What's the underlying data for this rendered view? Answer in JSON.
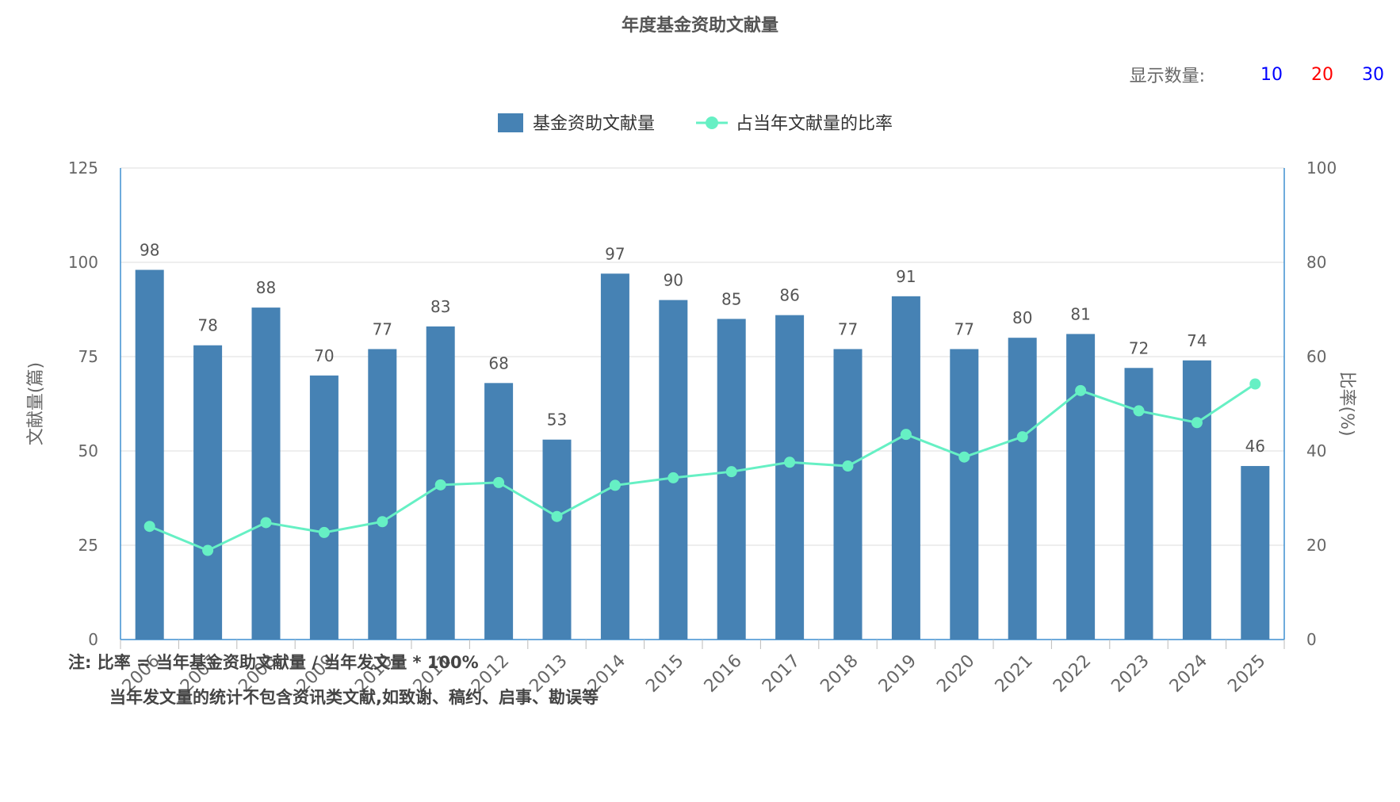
{
  "title": "年度基金资助文献量",
  "selector": {
    "label": "显示数量:",
    "options": [
      {
        "label": "10",
        "color": "#0000ff"
      },
      {
        "label": "20",
        "color": "#ff0000"
      },
      {
        "label": "30",
        "color": "#0000ff"
      }
    ]
  },
  "notes": {
    "line1": "注:  比率 = 当年基金资助文献量 / 当年发文量 * 100%",
    "line2": "当年发文量的统计不包含资讯类文献,如致谢、稿约、启事、勘误等"
  },
  "chart_data": {
    "type": "bar",
    "categories": [
      "2006",
      "2007",
      "2008",
      "2009",
      "2010",
      "2011",
      "2012",
      "2013",
      "2014",
      "2015",
      "2016",
      "2017",
      "2018",
      "2019",
      "2020",
      "2021",
      "2022",
      "2023",
      "2024",
      "2025"
    ],
    "series": [
      {
        "name": "基金资助文献量",
        "type": "bar",
        "axis": "left",
        "color": "#4682b4",
        "values": [
          98,
          78,
          88,
          70,
          77,
          83,
          68,
          53,
          97,
          90,
          85,
          86,
          77,
          91,
          77,
          80,
          81,
          72,
          74,
          46
        ]
      },
      {
        "name": "占当年文献量的比率",
        "type": "line",
        "axis": "right",
        "color": "#66f0c4",
        "values": [
          24.0,
          18.9,
          24.8,
          22.7,
          25.0,
          32.8,
          33.3,
          26.1,
          32.7,
          34.3,
          35.6,
          37.6,
          36.8,
          43.5,
          38.7,
          43.0,
          52.8,
          48.5,
          46.0,
          54.2
        ]
      }
    ],
    "ylabel": "文献量(篇)",
    "y2label": "比率(%)",
    "ylim": [
      0,
      125
    ],
    "y2lim": [
      0,
      100
    ],
    "yticks": [
      "0",
      "25",
      "50",
      "75",
      "100",
      "125"
    ],
    "y2ticks": [
      "0",
      "20",
      "40",
      "60",
      "80",
      "100"
    ],
    "grid": true,
    "legend": "top-center"
  }
}
